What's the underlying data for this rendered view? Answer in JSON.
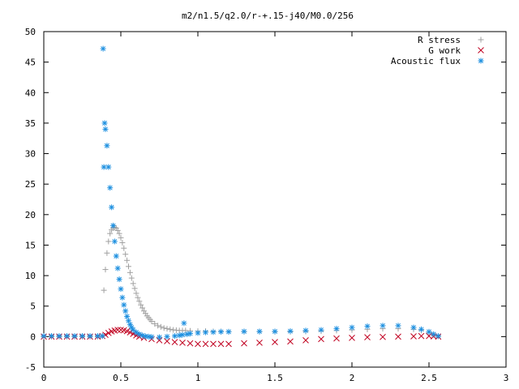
{
  "chart_data": {
    "type": "scatter",
    "title": "m2/n1.5/q2.0/r-+.15-j40/M0.0/256",
    "xlabel": "",
    "ylabel": "",
    "xlim": [
      0,
      3
    ],
    "ylim": [
      -5,
      50
    ],
    "x_ticks": [
      "0",
      "0.5",
      "1",
      "1.5",
      "2",
      "2.5",
      "3"
    ],
    "x_tick_values": [
      0,
      0.5,
      1,
      1.5,
      2,
      2.5,
      3
    ],
    "y_ticks": [
      "-5",
      "0",
      "5",
      "10",
      "15",
      "20",
      "25",
      "30",
      "35",
      "40",
      "45",
      "50"
    ],
    "y_tick_values": [
      -5,
      0,
      5,
      10,
      15,
      20,
      25,
      30,
      35,
      40,
      45,
      50
    ],
    "grid": false,
    "legend_position": "top-right",
    "series": [
      {
        "name": "R stress",
        "marker": "plus",
        "color": "#a0a0a0",
        "points": [
          [
            0.0,
            0
          ],
          [
            0.05,
            0
          ],
          [
            0.1,
            0
          ],
          [
            0.15,
            0
          ],
          [
            0.2,
            0
          ],
          [
            0.25,
            0
          ],
          [
            0.3,
            0
          ],
          [
            0.35,
            0
          ],
          [
            0.38,
            0.1
          ],
          [
            0.39,
            7.6
          ],
          [
            0.4,
            11.0
          ],
          [
            0.41,
            13.7
          ],
          [
            0.42,
            15.6
          ],
          [
            0.43,
            16.9
          ],
          [
            0.44,
            17.5
          ],
          [
            0.45,
            17.8
          ],
          [
            0.46,
            17.9
          ],
          [
            0.47,
            17.8
          ],
          [
            0.48,
            17.4
          ],
          [
            0.49,
            16.9
          ],
          [
            0.5,
            16.2
          ],
          [
            0.51,
            15.4
          ],
          [
            0.52,
            14.5
          ],
          [
            0.53,
            13.5
          ],
          [
            0.54,
            12.5
          ],
          [
            0.55,
            11.5
          ],
          [
            0.56,
            10.5
          ],
          [
            0.57,
            9.6
          ],
          [
            0.58,
            8.7
          ],
          [
            0.59,
            7.9
          ],
          [
            0.6,
            7.1
          ],
          [
            0.61,
            6.4
          ],
          [
            0.62,
            5.8
          ],
          [
            0.63,
            5.2
          ],
          [
            0.64,
            4.7
          ],
          [
            0.65,
            4.2
          ],
          [
            0.66,
            3.8
          ],
          [
            0.67,
            3.4
          ],
          [
            0.68,
            3.1
          ],
          [
            0.69,
            2.8
          ],
          [
            0.7,
            2.5
          ],
          [
            0.72,
            2.1
          ],
          [
            0.74,
            1.8
          ],
          [
            0.76,
            1.6
          ],
          [
            0.78,
            1.4
          ],
          [
            0.8,
            1.3
          ],
          [
            0.82,
            1.2
          ],
          [
            0.84,
            1.1
          ],
          [
            0.86,
            1.05
          ],
          [
            0.88,
            1.0
          ],
          [
            0.9,
            1.0
          ],
          [
            0.92,
            1.0
          ],
          [
            0.95,
            0.95
          ],
          [
            1.0,
            0.9
          ],
          [
            1.05,
            0.9
          ],
          [
            1.1,
            0.85
          ],
          [
            1.15,
            0.85
          ],
          [
            1.2,
            0.8
          ],
          [
            1.3,
            0.8
          ],
          [
            1.4,
            0.8
          ],
          [
            1.5,
            0.8
          ],
          [
            1.6,
            0.8
          ],
          [
            1.7,
            0.85
          ],
          [
            1.8,
            0.9
          ],
          [
            1.9,
            1.0
          ],
          [
            2.0,
            1.1
          ],
          [
            2.1,
            1.2
          ],
          [
            2.2,
            1.3
          ],
          [
            2.3,
            1.3
          ],
          [
            2.4,
            1.2
          ],
          [
            2.45,
            1.0
          ],
          [
            2.5,
            0.6
          ],
          [
            2.53,
            0.3
          ],
          [
            2.56,
            0.05
          ]
        ]
      },
      {
        "name": "G work",
        "marker": "cross",
        "color": "#c00020",
        "points": [
          [
            0.0,
            0
          ],
          [
            0.05,
            0
          ],
          [
            0.1,
            0
          ],
          [
            0.15,
            0
          ],
          [
            0.2,
            0
          ],
          [
            0.25,
            0
          ],
          [
            0.3,
            0
          ],
          [
            0.35,
            0
          ],
          [
            0.38,
            0.1
          ],
          [
            0.4,
            0.3
          ],
          [
            0.42,
            0.6
          ],
          [
            0.44,
            0.85
          ],
          [
            0.46,
            1.0
          ],
          [
            0.48,
            1.1
          ],
          [
            0.5,
            1.1
          ],
          [
            0.52,
            1.05
          ],
          [
            0.54,
            0.9
          ],
          [
            0.56,
            0.7
          ],
          [
            0.58,
            0.45
          ],
          [
            0.6,
            0.2
          ],
          [
            0.62,
            0.0
          ],
          [
            0.65,
            -0.2
          ],
          [
            0.7,
            -0.4
          ],
          [
            0.75,
            -0.6
          ],
          [
            0.8,
            -0.75
          ],
          [
            0.85,
            -0.9
          ],
          [
            0.9,
            -1.0
          ],
          [
            0.95,
            -1.1
          ],
          [
            1.0,
            -1.2
          ],
          [
            1.05,
            -1.2
          ],
          [
            1.1,
            -1.2
          ],
          [
            1.15,
            -1.2
          ],
          [
            1.2,
            -1.2
          ],
          [
            1.3,
            -1.1
          ],
          [
            1.4,
            -1.0
          ],
          [
            1.5,
            -0.9
          ],
          [
            1.6,
            -0.8
          ],
          [
            1.7,
            -0.6
          ],
          [
            1.8,
            -0.4
          ],
          [
            1.9,
            -0.3
          ],
          [
            2.0,
            -0.2
          ],
          [
            2.1,
            -0.1
          ],
          [
            2.2,
            -0.05
          ],
          [
            2.3,
            0.0
          ],
          [
            2.4,
            0.05
          ],
          [
            2.45,
            0.1
          ],
          [
            2.5,
            0.1
          ],
          [
            2.53,
            0.05
          ],
          [
            2.56,
            0.0
          ]
        ]
      },
      {
        "name": "Acoustic flux",
        "marker": "star",
        "color": "#1e90e0",
        "points": [
          [
            0.0,
            0.1
          ],
          [
            0.05,
            0.1
          ],
          [
            0.1,
            0.1
          ],
          [
            0.15,
            0.1
          ],
          [
            0.2,
            0.1
          ],
          [
            0.25,
            0.1
          ],
          [
            0.3,
            0.1
          ],
          [
            0.35,
            0.1
          ],
          [
            0.38,
            0.1
          ],
          [
            0.39,
            27.8
          ],
          [
            0.385,
            47.2
          ],
          [
            0.395,
            35.0
          ],
          [
            0.4,
            34.0
          ],
          [
            0.41,
            31.3
          ],
          [
            0.42,
            27.8
          ],
          [
            0.43,
            24.4
          ],
          [
            0.44,
            21.2
          ],
          [
            0.45,
            18.2
          ],
          [
            0.46,
            15.6
          ],
          [
            0.47,
            13.2
          ],
          [
            0.48,
            11.2
          ],
          [
            0.49,
            9.4
          ],
          [
            0.5,
            7.8
          ],
          [
            0.51,
            6.4
          ],
          [
            0.52,
            5.2
          ],
          [
            0.53,
            4.2
          ],
          [
            0.54,
            3.3
          ],
          [
            0.55,
            2.6
          ],
          [
            0.56,
            2.0
          ],
          [
            0.57,
            1.5
          ],
          [
            0.58,
            1.1
          ],
          [
            0.6,
            0.7
          ],
          [
            0.62,
            0.4
          ],
          [
            0.64,
            0.2
          ],
          [
            0.66,
            0.05
          ],
          [
            0.68,
            0.0
          ],
          [
            0.7,
            -0.05
          ],
          [
            0.75,
            -0.1
          ],
          [
            0.8,
            0.0
          ],
          [
            0.85,
            0.1
          ],
          [
            0.88,
            0.2
          ],
          [
            0.9,
            0.3
          ],
          [
            0.91,
            2.2
          ],
          [
            0.93,
            0.4
          ],
          [
            0.95,
            0.5
          ],
          [
            1.0,
            0.6
          ],
          [
            1.05,
            0.7
          ],
          [
            1.1,
            0.75
          ],
          [
            1.15,
            0.8
          ],
          [
            1.2,
            0.8
          ],
          [
            1.3,
            0.85
          ],
          [
            1.4,
            0.85
          ],
          [
            1.5,
            0.85
          ],
          [
            1.6,
            0.9
          ],
          [
            1.7,
            1.0
          ],
          [
            1.8,
            1.1
          ],
          [
            1.9,
            1.3
          ],
          [
            2.0,
            1.5
          ],
          [
            2.1,
            1.7
          ],
          [
            2.2,
            1.8
          ],
          [
            2.3,
            1.8
          ],
          [
            2.4,
            1.5
          ],
          [
            2.45,
            1.2
          ],
          [
            2.5,
            0.8
          ],
          [
            2.53,
            0.4
          ],
          [
            2.56,
            0.1
          ]
        ]
      }
    ]
  }
}
